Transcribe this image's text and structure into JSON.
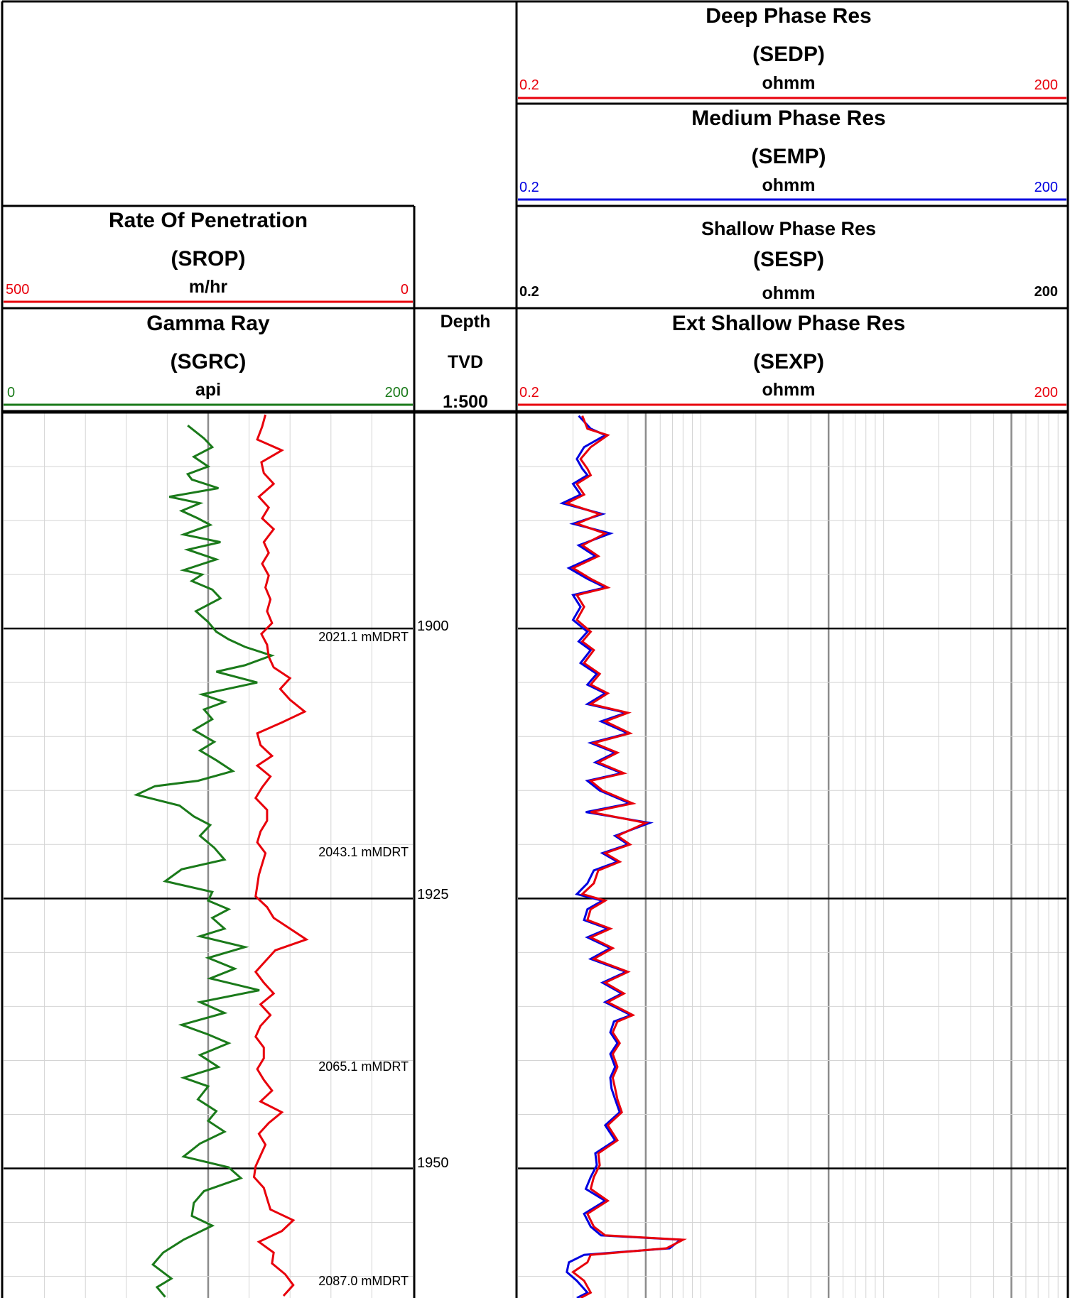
{
  "headers": {
    "deep_res": {
      "title": "Deep Phase Res",
      "mnemonic": "(SEDP)",
      "unit": "ohmm",
      "min": "0.2",
      "max": "200",
      "color": "#e8000b"
    },
    "medium_res": {
      "title": "Medium Phase Res",
      "mnemonic": "(SEMP)",
      "unit": "ohmm",
      "min": "0.2",
      "max": "200",
      "color": "#0000e0"
    },
    "shallow_res": {
      "title": "Shallow Phase Res",
      "mnemonic": "(SESP)",
      "unit": "ohmm",
      "min": "0.2",
      "max": "200",
      "color": "#000000"
    },
    "rop": {
      "title": "Rate Of Penetration",
      "mnemonic": "(SROP)",
      "unit": "m/hr",
      "min": "500",
      "max": "0",
      "color": "#e8000b"
    },
    "gamma": {
      "title": "Gamma Ray",
      "mnemonic": "(SGRC)",
      "unit": "api",
      "min": "0",
      "max": "200",
      "color": "#1a7a1a"
    },
    "depth": {
      "line1": "Depth",
      "line2": "TVD",
      "line3": "1:500"
    },
    "ext_shallow_res": {
      "title": "Ext Shallow Phase Res",
      "mnemonic": "(SEXP)",
      "unit": "ohmm",
      "min": "0.2",
      "max": "200",
      "color": "#e8000b"
    }
  },
  "depth_labels": [
    "1900",
    "1925",
    "1950"
  ],
  "md_labels": [
    "2021.1 mMDRT",
    "2043.1 mMDRT",
    "2065.1 mMDRT",
    "2087.0 mMDRT"
  ],
  "chart_data": {
    "type": "line",
    "y_axis": {
      "label": "TVD",
      "range": [
        1880,
        1962
      ],
      "inverted": true
    },
    "tracks": [
      {
        "name": "Track 1",
        "x_scale": "linear",
        "series": [
          {
            "name": "Gamma Ray (SGRC)",
            "unit": "api",
            "xlim": [
              0,
              200
            ],
            "color": "#1a7a1a",
            "depth": [
              1881.2,
              1882.4,
              1883.2,
              1884.1,
              1885.0,
              1885.7,
              1886.2,
              1887.0,
              1887.8,
              1888.4,
              1889.1,
              1889.8,
              1890.4,
              1891.3,
              1892.0,
              1892.7,
              1893.6,
              1894.6,
              1895.0,
              1895.6,
              1896.4,
              1897.2,
              1898.4,
              1899.4,
              1900.3,
              1901.0,
              1901.7,
              1902.5,
              1903.4,
              1904.0,
              1905.0,
              1906.1,
              1906.8,
              1907.5,
              1908.4,
              1909.4,
              1910.5,
              1911.3,
              1912.2,
              1913.2,
              1914.1,
              1914.6,
              1915.4,
              1916.4,
              1917.4,
              1918.2,
              1919.2,
              1920.3,
              1921.4,
              1922.3,
              1923.4,
              1924.4,
              1925.2,
              1926.0,
              1926.8,
              1927.8,
              1928.5,
              1929.5,
              1930.5,
              1931.5,
              1932.4,
              1933.5,
              1934.6,
              1935.6,
              1936.7,
              1937.6,
              1938.4,
              1939.5,
              1940.6,
              1941.6,
              1942.4,
              1943.6,
              1944.7,
              1945.6,
              1946.6,
              1947.7,
              1948.9,
              1949.9,
              1950.9,
              1952.1,
              1953.2,
              1954.4,
              1955.3,
              1956.6,
              1957.8,
              1958.9,
              1960.2,
              1961.0,
              1961.9
            ],
            "values": [
              90,
              98,
              102,
              93,
              100,
              90,
              92,
              105,
              81,
              96,
              87,
              95,
              101,
              88,
              106,
              90,
              104,
              88,
              97,
              92,
              102,
              106,
              94,
              100,
              104,
              110,
              118,
              131,
              118,
              104,
              124,
              97,
              108,
              98,
              102,
              93,
              103,
              96,
              104,
              112,
              95,
              74,
              65,
              86,
              93,
              101,
              96,
              103,
              108,
              87,
              79,
              102,
              100,
              110,
              102,
              108,
              96,
              118,
              100,
              113,
              101,
              125,
              96,
              108,
              87,
              100,
              110,
              96,
              105,
              88,
              100,
              95,
              104,
              100,
              108,
              96,
              88,
              110,
              116,
              98,
              93,
              92,
              102,
              88,
              78,
              73,
              82,
              75,
              79
            ]
          },
          {
            "name": "Rate Of Penetration (SROP)",
            "unit": "m/hr",
            "xlim": [
              500,
              0
            ],
            "color": "#e8000b",
            "depth": [
              1880.2,
              1881.3,
              1882.5,
              1883.5,
              1884.6,
              1885.6,
              1886.6,
              1887.8,
              1888.8,
              1889.8,
              1890.8,
              1892.0,
              1893.0,
              1894.0,
              1895.1,
              1896.2,
              1897.3,
              1898.4,
              1899.5,
              1900.5,
              1901.5,
              1902.6,
              1903.6,
              1904.6,
              1905.6,
              1906.6,
              1907.7,
              1908.7,
              1909.7,
              1910.8,
              1911.8,
              1912.7,
              1913.7,
              1914.7,
              1915.7,
              1916.8,
              1917.8,
              1918.8,
              1919.8,
              1920.8,
              1921.8,
              1922.8,
              1923.8,
              1924.8,
              1925.8,
              1926.8,
              1927.8,
              1928.8,
              1929.8,
              1930.8,
              1931.8,
              1932.8,
              1933.8,
              1934.8,
              1935.8,
              1936.8,
              1937.8,
              1938.8,
              1939.8,
              1940.8,
              1941.8,
              1942.8,
              1943.8,
              1944.8,
              1945.8,
              1946.8,
              1947.8,
              1948.8,
              1949.8,
              1950.8,
              1951.8,
              1952.8,
              1953.8,
              1954.8,
              1955.8,
              1956.8,
              1957.8,
              1958.8,
              1959.8,
              1960.8,
              1961.8
            ],
            "values": [
              180,
              184,
              190,
              160,
              185,
              182,
              170,
              188,
              176,
              184,
              170,
              182,
              176,
              184,
              176,
              180,
              174,
              178,
              172,
              185,
              178,
              176,
              170,
              150,
              162,
              150,
              132,
              160,
              190,
              186,
              172,
              190,
              174,
              184,
              192,
              178,
              178,
              186,
              190,
              180,
              184,
              188,
              190,
              192,
              178,
              170,
              150,
              130,
              168,
              180,
              192,
              182,
              170,
              186,
              174,
              186,
              192,
              182,
              182,
              190,
              182,
              172,
              186,
              160,
              176,
              188,
              180,
              186,
              192,
              194,
              182,
              178,
              174,
              146,
              160,
              188,
              170,
              172,
              156,
              146,
              158
            ]
          }
        ]
      },
      {
        "name": "Track 3",
        "x_scale": "log",
        "series": [
          {
            "name": "Ext Shallow Phase Res (SEXP)",
            "unit": "ohmm",
            "xlim": [
              0.2,
              200
            ],
            "color": "#e8000b",
            "depth": [
              1880.3,
              1881.5,
              1882.1,
              1883.2,
              1884.3,
              1885.2,
              1885.8,
              1886.6,
              1887.6,
              1888.4,
              1889.4,
              1890.3,
              1891.2,
              1892.3,
              1893.3,
              1894.4,
              1895.4,
              1896.2,
              1896.9,
              1898.0,
              1899.2,
              1900.3,
              1901.2,
              1902.0,
              1903.2,
              1904.2,
              1905.2,
              1906.0,
              1907.0,
              1907.8,
              1908.6,
              1909.7,
              1910.6,
              1911.5,
              1912.4,
              1913.4,
              1914.1,
              1915.0,
              1916.2,
              1917.0,
              1918.0,
              1919.2,
              1920.0,
              1920.8,
              1921.6,
              1922.4,
              1923.6,
              1924.6,
              1925.2,
              1926.0,
              1927.0,
              1927.8,
              1928.6,
              1929.6,
              1930.6,
              1931.8,
              1932.8,
              1933.8,
              1934.6,
              1935.8,
              1936.4,
              1937.4,
              1938.4,
              1939.4,
              1940.6,
              1941.6,
              1942.6,
              1943.6,
              1944.8,
              1946.0,
              1947.4,
              1948.6,
              1949.7,
              1950.8,
              1951.9,
              1953.0,
              1954.2,
              1955.4,
              1956.2,
              1956.6,
              1957.4,
              1958.0,
              1958.7,
              1959.6,
              1960.4,
              1961.5,
              1962.0
            ],
            "values": [
              0.45,
              0.48,
              0.62,
              0.5,
              0.44,
              0.48,
              0.5,
              0.42,
              0.46,
              0.37,
              0.56,
              0.42,
              0.6,
              0.45,
              0.55,
              0.4,
              0.5,
              0.62,
              0.42,
              0.46,
              0.42,
              0.5,
              0.45,
              0.52,
              0.46,
              0.56,
              0.5,
              0.62,
              0.5,
              0.8,
              0.6,
              0.82,
              0.52,
              0.7,
              0.55,
              0.76,
              0.5,
              0.58,
              0.85,
              0.5,
              1.0,
              0.7,
              0.82,
              0.6,
              0.72,
              0.55,
              0.52,
              0.45,
              0.6,
              0.5,
              0.48,
              0.64,
              0.5,
              0.66,
              0.52,
              0.8,
              0.6,
              0.76,
              0.62,
              0.85,
              0.7,
              0.66,
              0.72,
              0.66,
              0.7,
              0.66,
              0.68,
              0.7,
              0.74,
              0.62,
              0.7,
              0.55,
              0.56,
              0.52,
              0.5,
              0.62,
              0.48,
              0.52,
              0.6,
              1.6,
              1.3,
              0.5,
              0.48,
              0.4,
              0.46,
              0.5,
              0.44
            ]
          },
          {
            "name": "Medium Phase Res (SEMP)",
            "unit": "ohmm",
            "xlim": [
              0.2,
              200
            ],
            "color": "#0000e0",
            "depth": [
              1880.3,
              1881.5,
              1882.1,
              1883.2,
              1884.3,
              1885.2,
              1885.8,
              1886.6,
              1887.6,
              1888.4,
              1889.4,
              1890.3,
              1891.2,
              1892.3,
              1893.3,
              1894.4,
              1895.4,
              1896.2,
              1896.9,
              1898.0,
              1899.2,
              1900.3,
              1901.2,
              1902.0,
              1903.2,
              1904.2,
              1905.2,
              1906.0,
              1907.0,
              1907.8,
              1908.6,
              1909.7,
              1910.6,
              1911.5,
              1912.4,
              1913.4,
              1914.1,
              1915.0,
              1916.2,
              1917.0,
              1918.0,
              1919.2,
              1920.0,
              1920.8,
              1921.6,
              1922.4,
              1923.6,
              1924.6,
              1925.2,
              1926.0,
              1927.0,
              1927.8,
              1928.6,
              1929.6,
              1930.6,
              1931.8,
              1932.8,
              1933.8,
              1934.6,
              1935.8,
              1936.4,
              1937.4,
              1938.4,
              1939.4,
              1940.6,
              1941.6,
              1942.6,
              1943.6,
              1944.8,
              1946.0,
              1947.4,
              1948.6,
              1949.7,
              1950.8,
              1951.9,
              1953.0,
              1954.2,
              1955.4,
              1956.2,
              1956.6,
              1957.4,
              1958.0,
              1958.7,
              1959.6,
              1960.4,
              1961.5,
              1962.0
            ],
            "values": [
              0.43,
              0.5,
              0.6,
              0.46,
              0.42,
              0.45,
              0.48,
              0.4,
              0.44,
              0.35,
              0.58,
              0.4,
              0.64,
              0.43,
              0.53,
              0.38,
              0.48,
              0.6,
              0.4,
              0.44,
              0.4,
              0.48,
              0.43,
              0.5,
              0.44,
              0.54,
              0.48,
              0.6,
              0.48,
              0.78,
              0.57,
              0.8,
              0.5,
              0.68,
              0.53,
              0.74,
              0.48,
              0.56,
              0.82,
              0.47,
              1.05,
              0.68,
              0.8,
              0.58,
              0.7,
              0.52,
              0.48,
              0.42,
              0.58,
              0.48,
              0.46,
              0.62,
              0.48,
              0.64,
              0.5,
              0.78,
              0.58,
              0.74,
              0.6,
              0.83,
              0.67,
              0.64,
              0.7,
              0.64,
              0.68,
              0.64,
              0.65,
              0.68,
              0.72,
              0.6,
              0.68,
              0.53,
              0.54,
              0.5,
              0.47,
              0.6,
              0.46,
              0.5,
              0.57,
              1.55,
              1.35,
              0.46,
              0.38,
              0.37,
              0.42,
              0.48,
              0.42
            ]
          }
        ]
      }
    ]
  }
}
